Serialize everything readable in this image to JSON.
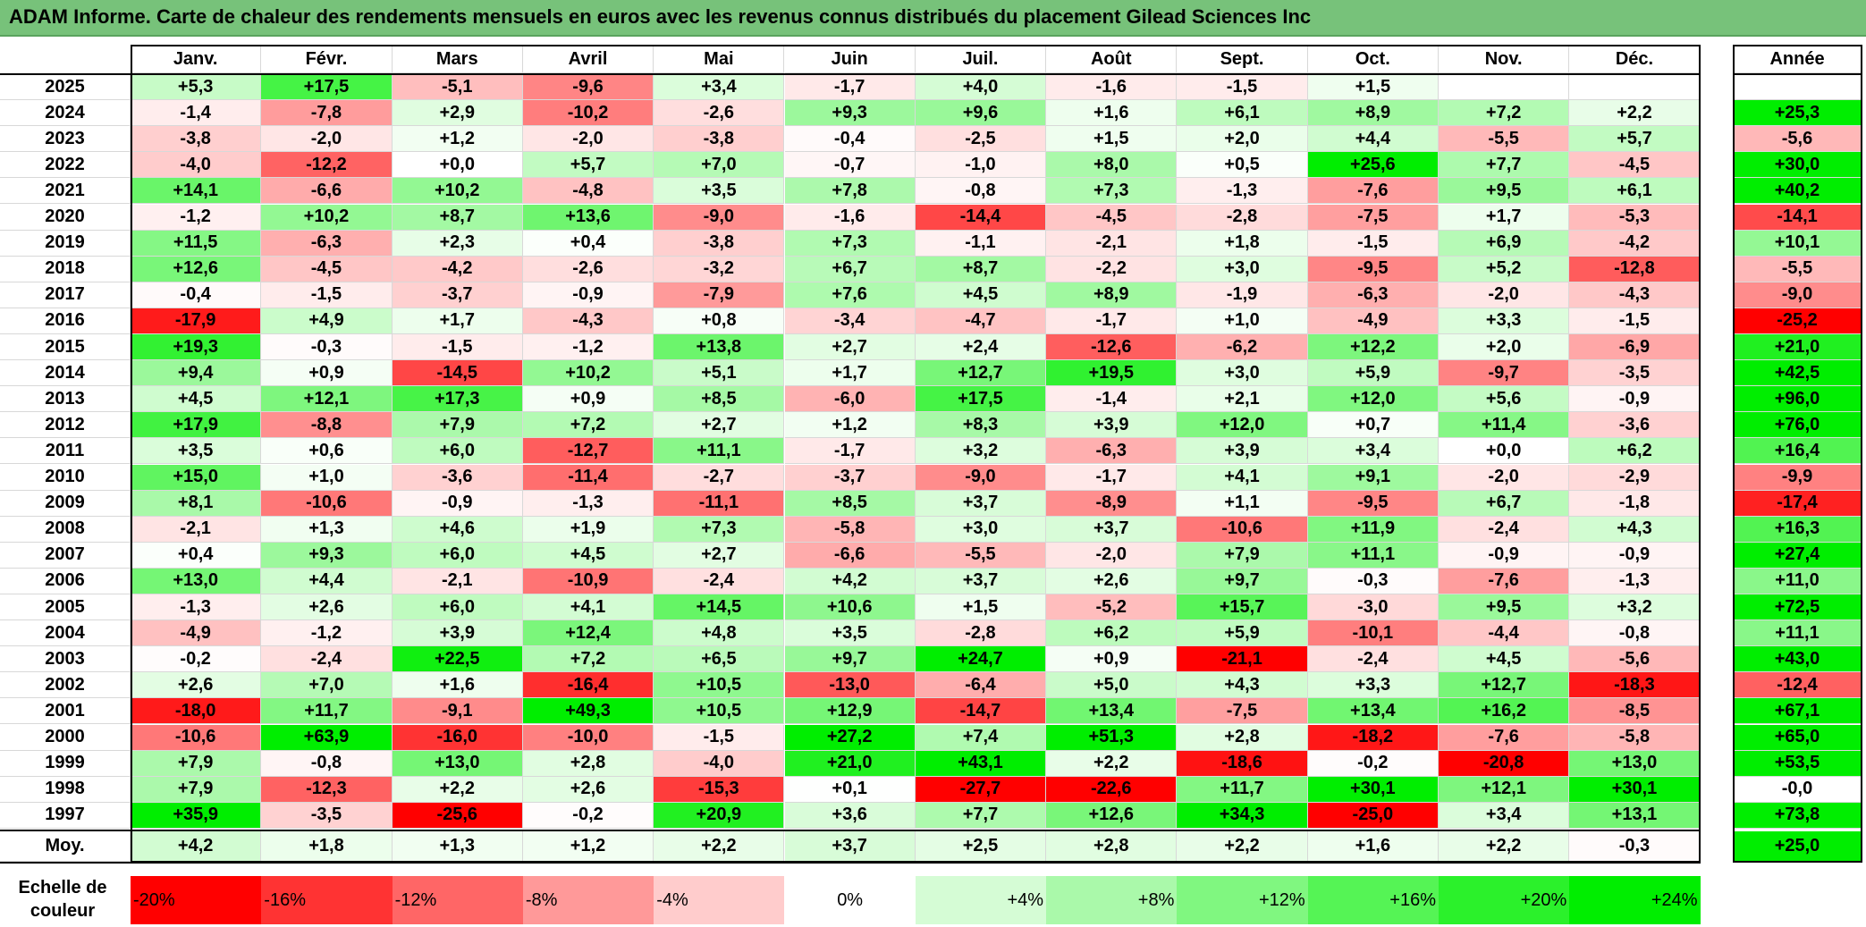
{
  "title": "ADAM Informe. Carte de chaleur des rendements mensuels en euros avec les revenus connus distribués du placement Gilead Sciences Inc",
  "chart_data": {
    "type": "heatmap",
    "columns": [
      "Janv.",
      "Févr.",
      "Mars",
      "Avril",
      "Mai",
      "Juin",
      "Juil.",
      "Août",
      "Sept.",
      "Oct.",
      "Nov.",
      "Déc."
    ],
    "annual_header": "Année",
    "rows": [
      {
        "year": "2025",
        "values": [
          "+5,3",
          "+17,5",
          "-5,1",
          "-9,6",
          "+3,4",
          "-1,7",
          "+4,0",
          "-1,6",
          "-1,5",
          "+1,5",
          "",
          ""
        ],
        "annual": ""
      },
      {
        "year": "2024",
        "values": [
          "-1,4",
          "-7,8",
          "+2,9",
          "-10,2",
          "-2,6",
          "+9,3",
          "+9,6",
          "+1,6",
          "+6,1",
          "+8,9",
          "+7,2",
          "+2,2"
        ],
        "annual": "+25,3"
      },
      {
        "year": "2023",
        "values": [
          "-3,8",
          "-2,0",
          "+1,2",
          "-2,0",
          "-3,8",
          "-0,4",
          "-2,5",
          "+1,5",
          "+2,0",
          "+4,4",
          "-5,5",
          "+5,7"
        ],
        "annual": "-5,6"
      },
      {
        "year": "2022",
        "values": [
          "-4,0",
          "-12,2",
          "+0,0",
          "+5,7",
          "+7,0",
          "-0,7",
          "-1,0",
          "+8,0",
          "+0,5",
          "+25,6",
          "+7,7",
          "-4,5"
        ],
        "annual": "+30,0"
      },
      {
        "year": "2021",
        "values": [
          "+14,1",
          "-6,6",
          "+10,2",
          "-4,8",
          "+3,5",
          "+7,8",
          "-0,8",
          "+7,3",
          "-1,3",
          "-7,6",
          "+9,5",
          "+6,1"
        ],
        "annual": "+40,2"
      },
      {
        "year": "2020",
        "values": [
          "-1,2",
          "+10,2",
          "+8,7",
          "+13,6",
          "-9,0",
          "-1,6",
          "-14,4",
          "-4,5",
          "-2,8",
          "-7,5",
          "+1,7",
          "-5,3"
        ],
        "annual": "-14,1"
      },
      {
        "year": "2019",
        "values": [
          "+11,5",
          "-6,3",
          "+2,3",
          "+0,4",
          "-3,8",
          "+7,3",
          "-1,1",
          "-2,1",
          "+1,8",
          "-1,5",
          "+6,9",
          "-4,2"
        ],
        "annual": "+10,1"
      },
      {
        "year": "2018",
        "values": [
          "+12,6",
          "-4,5",
          "-4,2",
          "-2,6",
          "-3,2",
          "+6,7",
          "+8,7",
          "-2,2",
          "+3,0",
          "-9,5",
          "+5,2",
          "-12,8"
        ],
        "annual": "-5,5"
      },
      {
        "year": "2017",
        "values": [
          "-0,4",
          "-1,5",
          "-3,7",
          "-0,9",
          "-7,9",
          "+7,6",
          "+4,5",
          "+8,9",
          "-1,9",
          "-6,3",
          "-2,0",
          "-4,3"
        ],
        "annual": "-9,0"
      },
      {
        "year": "2016",
        "values": [
          "-17,9",
          "+4,9",
          "+1,7",
          "-4,3",
          "+0,8",
          "-3,4",
          "-4,7",
          "-1,7",
          "+1,0",
          "-4,9",
          "+3,3",
          "-1,5"
        ],
        "annual": "-25,2"
      },
      {
        "year": "2015",
        "values": [
          "+19,3",
          "-0,3",
          "-1,5",
          "-1,2",
          "+13,8",
          "+2,7",
          "+2,4",
          "-12,6",
          "-6,2",
          "+12,2",
          "+2,0",
          "-6,9"
        ],
        "annual": "+21,0"
      },
      {
        "year": "2014",
        "values": [
          "+9,4",
          "+0,9",
          "-14,5",
          "+10,2",
          "+5,1",
          "+1,7",
          "+12,7",
          "+19,5",
          "+3,0",
          "+5,9",
          "-9,7",
          "-3,5"
        ],
        "annual": "+42,5"
      },
      {
        "year": "2013",
        "values": [
          "+4,5",
          "+12,1",
          "+17,3",
          "+0,9",
          "+8,5",
          "-6,0",
          "+17,5",
          "-1,4",
          "+2,1",
          "+12,0",
          "+5,6",
          "-0,9"
        ],
        "annual": "+96,0"
      },
      {
        "year": "2012",
        "values": [
          "+17,9",
          "-8,8",
          "+7,9",
          "+7,2",
          "+2,7",
          "+1,2",
          "+8,3",
          "+3,9",
          "+12,0",
          "+0,7",
          "+11,4",
          "-3,6"
        ],
        "annual": "+76,0"
      },
      {
        "year": "2011",
        "values": [
          "+3,5",
          "+0,6",
          "+6,0",
          "-12,7",
          "+11,1",
          "-1,7",
          "+3,2",
          "-6,3",
          "+3,9",
          "+3,4",
          "+0,0",
          "+6,2"
        ],
        "annual": "+16,4"
      },
      {
        "year": "2010",
        "values": [
          "+15,0",
          "+1,0",
          "-3,6",
          "-11,4",
          "-2,7",
          "-3,7",
          "-9,0",
          "-1,7",
          "+4,1",
          "+9,1",
          "-2,0",
          "-2,9"
        ],
        "annual": "-9,9"
      },
      {
        "year": "2009",
        "values": [
          "+8,1",
          "-10,6",
          "-0,9",
          "-1,3",
          "-11,1",
          "+8,5",
          "+3,7",
          "-8,9",
          "+1,1",
          "-9,5",
          "+6,7",
          "-1,8"
        ],
        "annual": "-17,4"
      },
      {
        "year": "2008",
        "values": [
          "-2,1",
          "+1,3",
          "+4,6",
          "+1,9",
          "+7,3",
          "-5,8",
          "+3,0",
          "+3,7",
          "-10,6",
          "+11,9",
          "-2,4",
          "+4,3"
        ],
        "annual": "+16,3"
      },
      {
        "year": "2007",
        "values": [
          "+0,4",
          "+9,3",
          "+6,0",
          "+4,5",
          "+2,7",
          "-6,6",
          "-5,5",
          "-2,0",
          "+7,9",
          "+11,1",
          "-0,9",
          "-0,9"
        ],
        "annual": "+27,4"
      },
      {
        "year": "2006",
        "values": [
          "+13,0",
          "+4,4",
          "-2,1",
          "-10,9",
          "-2,4",
          "+4,2",
          "+3,7",
          "+2,6",
          "+9,7",
          "-0,3",
          "-7,6",
          "-1,3"
        ],
        "annual": "+11,0"
      },
      {
        "year": "2005",
        "values": [
          "-1,3",
          "+2,6",
          "+6,0",
          "+4,1",
          "+14,5",
          "+10,6",
          "+1,5",
          "-5,2",
          "+15,7",
          "-3,0",
          "+9,5",
          "+3,2"
        ],
        "annual": "+72,5"
      },
      {
        "year": "2004",
        "values": [
          "-4,9",
          "-1,2",
          "+3,9",
          "+12,4",
          "+4,8",
          "+3,5",
          "-2,8",
          "+6,2",
          "+5,9",
          "-10,1",
          "-4,4",
          "-0,8"
        ],
        "annual": "+11,1"
      },
      {
        "year": "2003",
        "values": [
          "-0,2",
          "-2,4",
          "+22,5",
          "+7,2",
          "+6,5",
          "+9,7",
          "+24,7",
          "+0,9",
          "-21,1",
          "-2,4",
          "+4,5",
          "-5,6"
        ],
        "annual": "+43,0"
      },
      {
        "year": "2002",
        "values": [
          "+2,6",
          "+7,0",
          "+1,6",
          "-16,4",
          "+10,5",
          "-13,0",
          "-6,4",
          "+5,0",
          "+4,3",
          "+3,3",
          "+12,7",
          "-18,3"
        ],
        "annual": "-12,4"
      },
      {
        "year": "2001",
        "values": [
          "-18,0",
          "+11,7",
          "-9,1",
          "+49,3",
          "+10,5",
          "+12,9",
          "-14,7",
          "+13,4",
          "-7,5",
          "+13,4",
          "+16,2",
          "-8,5"
        ],
        "annual": "+67,1"
      },
      {
        "year": "2000",
        "values": [
          "-10,6",
          "+63,9",
          "-16,0",
          "-10,0",
          "-1,5",
          "+27,2",
          "+7,4",
          "+51,3",
          "+2,8",
          "-18,2",
          "-7,6",
          "-5,8"
        ],
        "annual": "+65,0"
      },
      {
        "year": "1999",
        "values": [
          "+7,9",
          "-0,8",
          "+13,0",
          "+2,8",
          "-4,0",
          "+21,0",
          "+43,1",
          "+2,2",
          "-18,6",
          "-0,2",
          "-20,8",
          "+13,0"
        ],
        "annual": "+53,5"
      },
      {
        "year": "1998",
        "values": [
          "+7,9",
          "-12,3",
          "+2,2",
          "+2,6",
          "-15,3",
          "+0,1",
          "-27,7",
          "-22,6",
          "+11,7",
          "+30,1",
          "+12,1",
          "+30,1"
        ],
        "annual": "-0,0"
      },
      {
        "year": "1997",
        "values": [
          "+35,9",
          "-3,5",
          "-25,6",
          "-0,2",
          "+20,9",
          "+3,6",
          "+7,7",
          "+12,6",
          "+34,3",
          "-25,0",
          "+3,4",
          "+13,1"
        ],
        "annual": "+73,8"
      }
    ],
    "average": {
      "label": "Moy.",
      "values": [
        "+4,2",
        "+1,8",
        "+1,3",
        "+1,2",
        "+2,2",
        "+3,7",
        "+2,5",
        "+2,8",
        "+2,2",
        "+1,6",
        "+2,2",
        "-0,3"
      ],
      "annual": "+25,0"
    },
    "legend": {
      "label": "Echelle de couleur",
      "stops": [
        "-20%",
        "-16%",
        "-12%",
        "-8%",
        "-4%",
        "0%",
        "+4%",
        "+8%",
        "+12%",
        "+16%",
        "+20%",
        "+24%"
      ]
    }
  }
}
